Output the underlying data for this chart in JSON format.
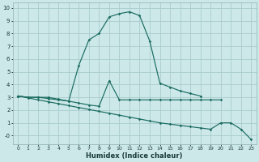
{
  "xlabel": "Humidex (Indice chaleur)",
  "bg_color": "#cce8e8",
  "grid_color": "#aacccc",
  "line_color": "#1a6b60",
  "line1_x": [
    0,
    1,
    2,
    3,
    4,
    5,
    6,
    7,
    8,
    9,
    10,
    11,
    12,
    13,
    14,
    15,
    16,
    17,
    18
  ],
  "line1_y": [
    3.1,
    3.0,
    3.0,
    3.0,
    2.85,
    2.7,
    5.5,
    7.5,
    8.0,
    9.3,
    9.55,
    9.7,
    9.4,
    7.4,
    4.1,
    3.8,
    3.5,
    3.3,
    3.1
  ],
  "line2_x": [
    0,
    1,
    2,
    3,
    4,
    5,
    6,
    7,
    8,
    9,
    10,
    11,
    12,
    13,
    14,
    15,
    16,
    17,
    18,
    19,
    20
  ],
  "line2_y": [
    3.1,
    3.0,
    3.0,
    2.9,
    2.8,
    2.7,
    2.55,
    2.4,
    2.3,
    4.3,
    2.8,
    2.8,
    2.8,
    2.8,
    2.8,
    2.8,
    2.8,
    2.8,
    2.8,
    2.8,
    2.8
  ],
  "line3_x": [
    0,
    1,
    2,
    3,
    4,
    5,
    6,
    7,
    8,
    9,
    10,
    11,
    12,
    13,
    14,
    15,
    16,
    17,
    18,
    19,
    20,
    21,
    22,
    23
  ],
  "line3_y": [
    3.1,
    2.95,
    2.8,
    2.65,
    2.5,
    2.35,
    2.2,
    2.05,
    1.9,
    1.75,
    1.6,
    1.45,
    1.3,
    1.15,
    1.0,
    0.9,
    0.8,
    0.7,
    0.6,
    0.5,
    1.0,
    1.0,
    0.5,
    -0.3
  ],
  "xlim": [
    -0.5,
    23.5
  ],
  "ylim": [
    -0.65,
    10.4
  ],
  "yticks": [
    0,
    1,
    2,
    3,
    4,
    5,
    6,
    7,
    8,
    9,
    10
  ],
  "ytick_labels": [
    "-0",
    "1",
    "2",
    "3",
    "4",
    "5",
    "6",
    "7",
    "8",
    "9",
    "10"
  ],
  "xticks": [
    0,
    1,
    2,
    3,
    4,
    5,
    6,
    7,
    8,
    9,
    10,
    11,
    12,
    13,
    14,
    15,
    16,
    17,
    18,
    19,
    20,
    21,
    22,
    23
  ]
}
